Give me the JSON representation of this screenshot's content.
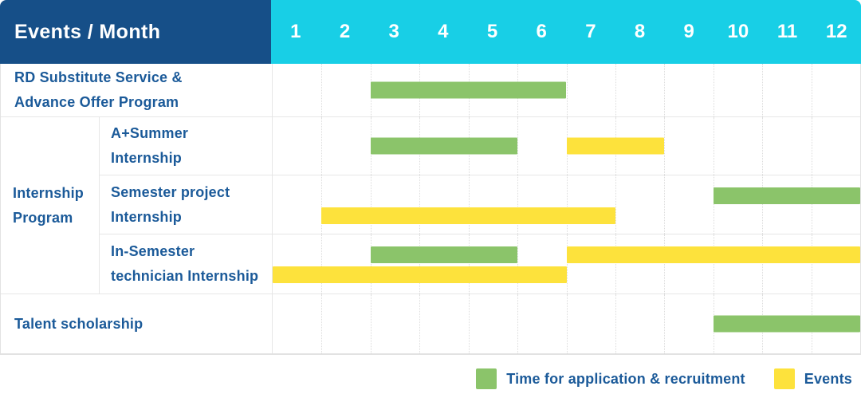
{
  "header": {
    "events_month_label": "Events / Month",
    "months": [
      "1",
      "2",
      "3",
      "4",
      "5",
      "6",
      "7",
      "8",
      "9",
      "10",
      "11",
      "12"
    ]
  },
  "colors": {
    "header_navy": "#164F88",
    "months_cyan": "#18CFE6",
    "label_blue": "#1B5A99",
    "application_green": "#8BC46A",
    "events_yellow": "#FDE23C",
    "grid_gray": "#E6E6E6"
  },
  "legend": {
    "items": [
      {
        "label": "Time for application & recruitment",
        "type": "application"
      },
      {
        "label": "Events",
        "type": "events"
      }
    ]
  },
  "chart_data": {
    "type": "gantt",
    "x_unit": "month",
    "x_range": [
      1,
      12
    ],
    "bar_types": {
      "application": "Time for application & recruitment (green)",
      "events": "Events (yellow)"
    },
    "rows": [
      {
        "label": "RD Substitute Service &\nAdvance Offer Program",
        "group": "",
        "bars": [
          {
            "type": "application",
            "start_month": 3,
            "end_month": 6,
            "lane": "single"
          }
        ]
      },
      {
        "label": "A+Summer\nInternship",
        "group": "Internship\nProgram",
        "bars": [
          {
            "type": "application",
            "start_month": 3,
            "end_month": 5,
            "lane": "single"
          },
          {
            "type": "events",
            "start_month": 7,
            "end_month": 8,
            "lane": "single"
          }
        ]
      },
      {
        "label": "Semester project\nInternship",
        "group": "Internship\nProgram",
        "bars": [
          {
            "type": "application",
            "start_month": 10,
            "end_month": 12,
            "lane": "top"
          },
          {
            "type": "events",
            "start_month": 2,
            "end_month": 7,
            "lane": "bottom"
          }
        ]
      },
      {
        "label": "In-Semester\ntechnician Internship",
        "group": "Internship\nProgram",
        "bars": [
          {
            "type": "application",
            "start_month": 3,
            "end_month": 5,
            "lane": "top"
          },
          {
            "type": "events",
            "start_month": 7,
            "end_month": 12,
            "lane": "top"
          },
          {
            "type": "events",
            "start_month": 1,
            "end_month": 6,
            "lane": "bottom"
          }
        ]
      },
      {
        "label": "Talent scholarship",
        "group": "",
        "bars": [
          {
            "type": "application",
            "start_month": 10,
            "end_month": 12,
            "lane": "single"
          }
        ]
      }
    ]
  }
}
